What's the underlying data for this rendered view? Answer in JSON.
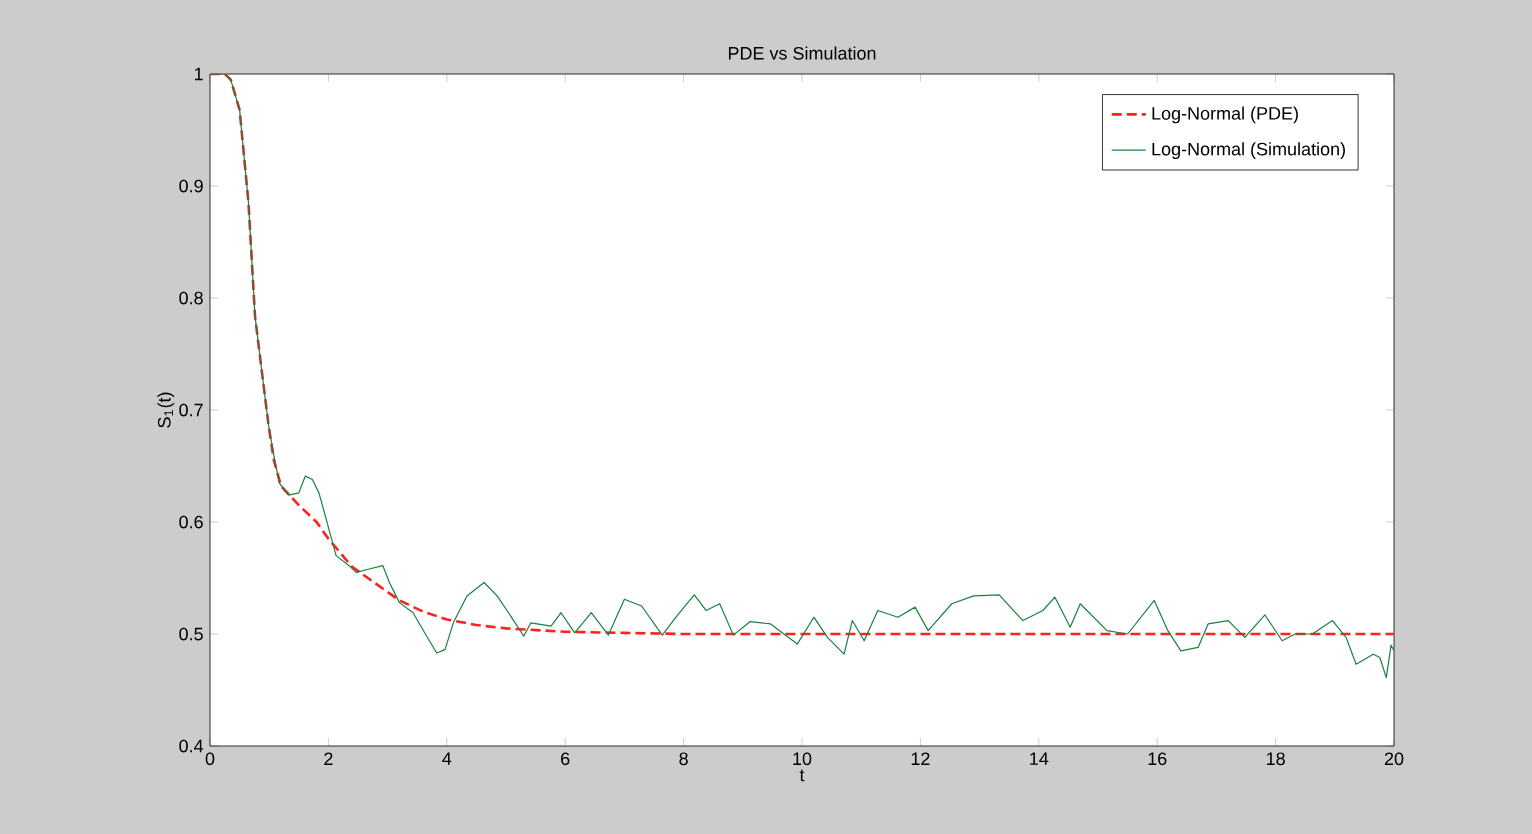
{
  "chart_data": {
    "type": "line",
    "title": "PDE vs Simulation",
    "xlabel": "t",
    "ylabel": "S$_{1}$(t)",
    "xlim": [
      0,
      20
    ],
    "ylim": [
      0.4,
      1
    ],
    "xticks": [
      0,
      2,
      4,
      6,
      8,
      10,
      12,
      14,
      16,
      18,
      20
    ],
    "yticks": [
      0.4,
      0.5,
      0.6,
      0.7,
      0.8,
      0.9,
      1
    ],
    "legend": "top right",
    "grid": false,
    "series": [
      {
        "name": "Log-Normal (PDE)",
        "color": "#ff2020",
        "line_style": "dashed",
        "x": [
          0,
          0.25,
          0.35,
          0.5,
          0.65,
          0.76,
          0.9,
          0.99,
          1.08,
          1.2,
          1.5,
          1.8,
          2,
          2.4,
          2.8,
          3.2,
          3.6,
          4,
          4.5,
          5,
          6,
          7,
          8,
          20
        ],
        "values": [
          1,
          1,
          0.995,
          0.968,
          0.885,
          0.784,
          0.724,
          0.686,
          0.655,
          0.632,
          0.615,
          0.6,
          0.585,
          0.56,
          0.545,
          0.53,
          0.52,
          0.513,
          0.508,
          0.505,
          0.502,
          0.501,
          0.5,
          0.5
        ]
      },
      {
        "name": "Log-Normal (Simulation)",
        "color": "#1a8040",
        "line_style": "solid",
        "x": [
          0,
          0.25,
          0.35,
          0.5,
          0.65,
          0.76,
          0.9,
          0.99,
          1.08,
          1.17,
          1.33,
          1.5,
          1.61,
          1.73,
          1.84,
          1.95,
          2.13,
          2.35,
          2.47,
          2.69,
          2.92,
          3.03,
          3.2,
          3.43,
          3.66,
          3.83,
          3.97,
          4.11,
          4.34,
          4.63,
          4.85,
          5.08,
          5.3,
          5.42,
          5.76,
          5.93,
          6.16,
          6.44,
          6.73,
          7.0,
          7.29,
          7.64,
          7.87,
          8.18,
          8.38,
          8.61,
          8.84,
          9.12,
          9.47,
          9.92,
          10.2,
          10.43,
          10.71,
          10.85,
          11.05,
          11.28,
          11.62,
          11.91,
          12.13,
          12.53,
          12.9,
          13.33,
          13.73,
          14.07,
          14.27,
          14.53,
          14.7,
          15.15,
          15.5,
          15.95,
          16.18,
          16.4,
          16.69,
          16.86,
          17.2,
          17.48,
          17.82,
          18.11,
          18.33,
          18.62,
          18.96,
          19.19,
          19.36,
          19.65,
          19.76,
          19.87,
          19.95,
          20
        ],
        "values": [
          1,
          1,
          0.995,
          0.968,
          0.885,
          0.784,
          0.724,
          0.686,
          0.659,
          0.635,
          0.624,
          0.626,
          0.641,
          0.638,
          0.626,
          0.605,
          0.57,
          0.561,
          0.555,
          0.558,
          0.561,
          0.546,
          0.528,
          0.519,
          0.498,
          0.483,
          0.486,
          0.51,
          0.534,
          0.546,
          0.534,
          0.516,
          0.498,
          0.51,
          0.507,
          0.519,
          0.501,
          0.519,
          0.499,
          0.531,
          0.525,
          0.499,
          0.515,
          0.535,
          0.521,
          0.527,
          0.499,
          0.511,
          0.509,
          0.491,
          0.515,
          0.497,
          0.482,
          0.512,
          0.494,
          0.521,
          0.515,
          0.524,
          0.503,
          0.527,
          0.534,
          0.535,
          0.512,
          0.521,
          0.533,
          0.506,
          0.527,
          0.503,
          0.5,
          0.53,
          0.503,
          0.485,
          0.488,
          0.509,
          0.512,
          0.497,
          0.517,
          0.494,
          0.5,
          0.5,
          0.512,
          0.497,
          0.473,
          0.482,
          0.479,
          0.461,
          0.49,
          0.485
        ]
      }
    ]
  }
}
